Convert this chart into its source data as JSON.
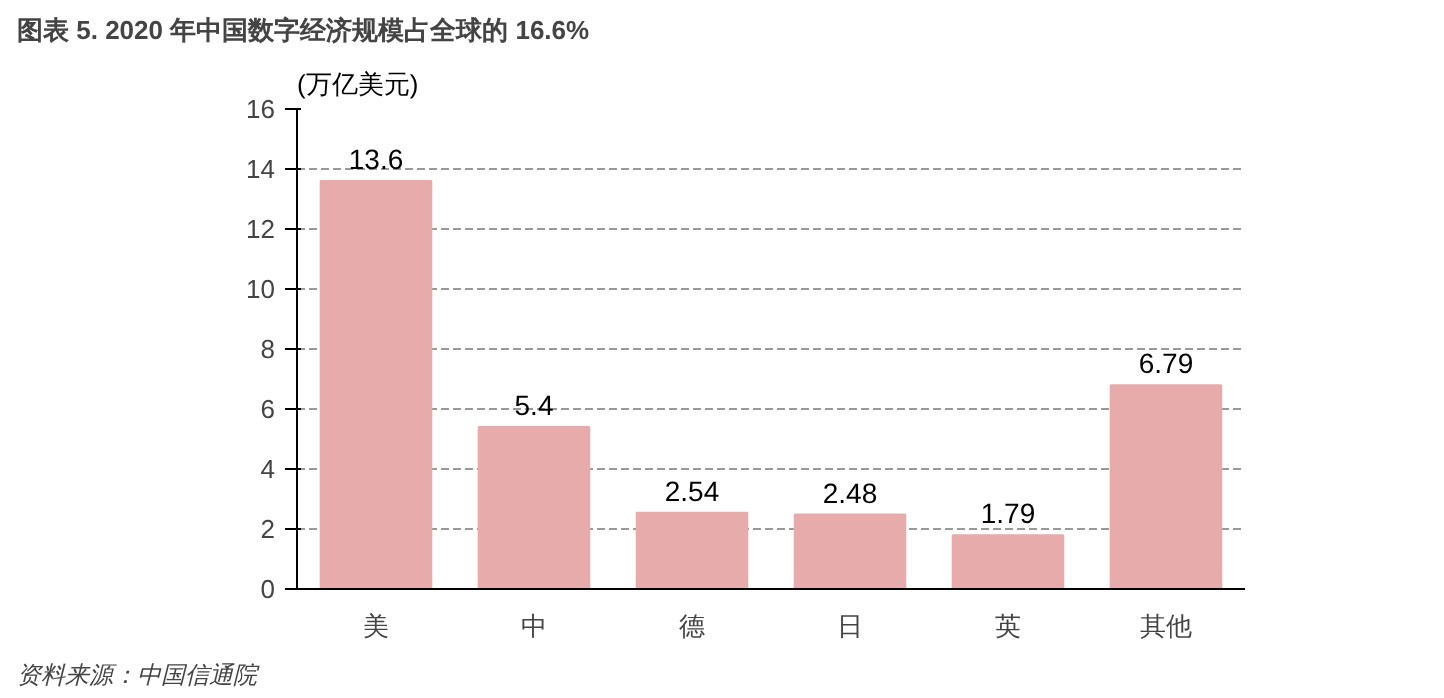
{
  "chart_data": {
    "type": "bar",
    "title": "图表 5. 2020 年中国数字经济规模占全球的 16.6%",
    "ylabel": "(万亿美元)",
    "categories": [
      "美",
      "中",
      "德",
      "日",
      "英",
      "其他"
    ],
    "values": [
      13.6,
      5.4,
      2.54,
      2.48,
      1.79,
      6.79
    ],
    "color": "#e8abab",
    "ylim": [
      0,
      16
    ],
    "yticks": [
      0,
      2,
      4,
      6,
      8,
      10,
      12,
      14,
      16
    ],
    "grid": "y",
    "data_labels": true,
    "annotations": [
      "资料来源：中国信通院"
    ]
  }
}
